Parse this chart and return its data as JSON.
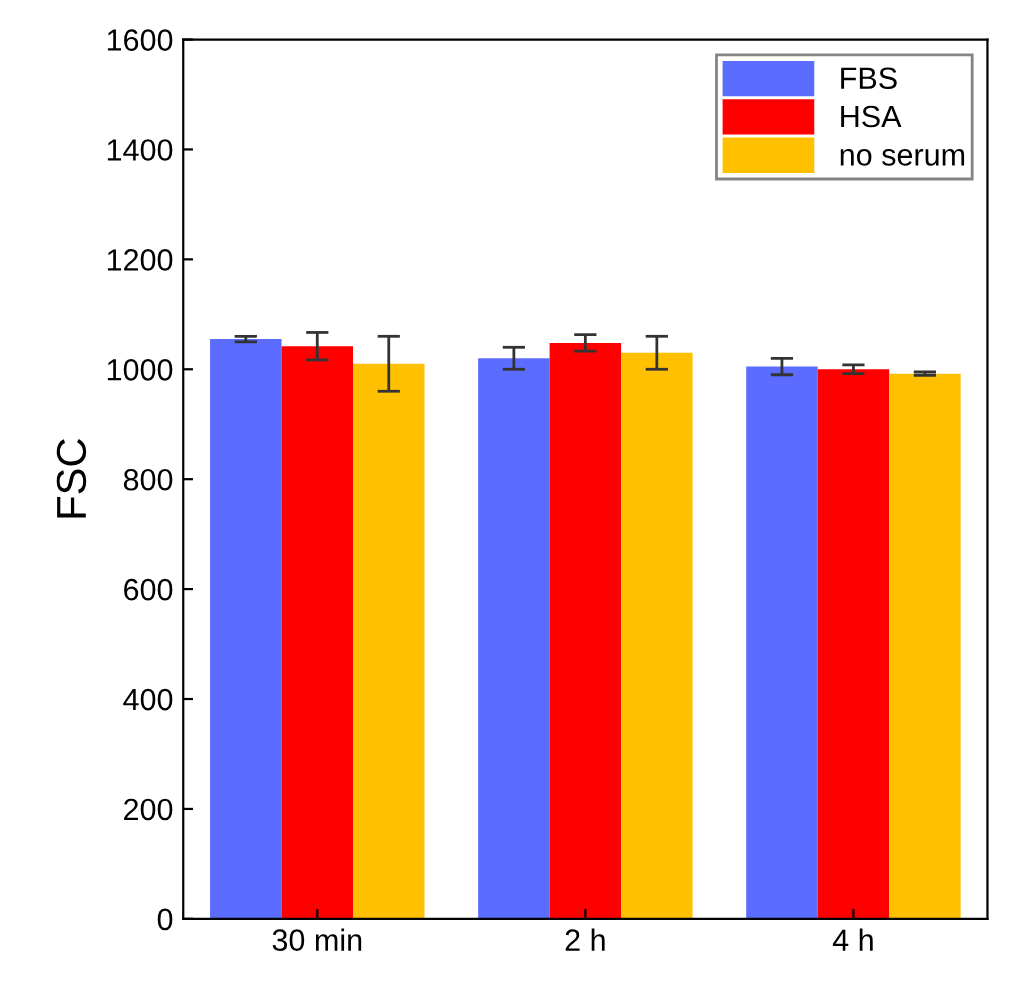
{
  "chart_data": {
    "type": "bar",
    "ylabel": "FSC",
    "categories": [
      "30 min",
      "2 h",
      "4 h"
    ],
    "series": [
      {
        "name": "FBS",
        "color": "#5b6cff",
        "values": [
          1055,
          1020,
          1005
        ],
        "errors": [
          5,
          20,
          15
        ]
      },
      {
        "name": "HSA",
        "color": "#ff0000",
        "values": [
          1042,
          1048,
          1000
        ],
        "errors": [
          25,
          15,
          8
        ]
      },
      {
        "name": "no serum",
        "color": "#ffc000",
        "values": [
          1010,
          1030,
          992
        ],
        "errors": [
          50,
          30,
          3
        ]
      }
    ],
    "ylim": [
      0,
      1600
    ],
    "yticks": [
      0,
      200,
      400,
      600,
      800,
      1000,
      1200,
      1400,
      1600
    ],
    "grid": false,
    "legend": "top right"
  }
}
